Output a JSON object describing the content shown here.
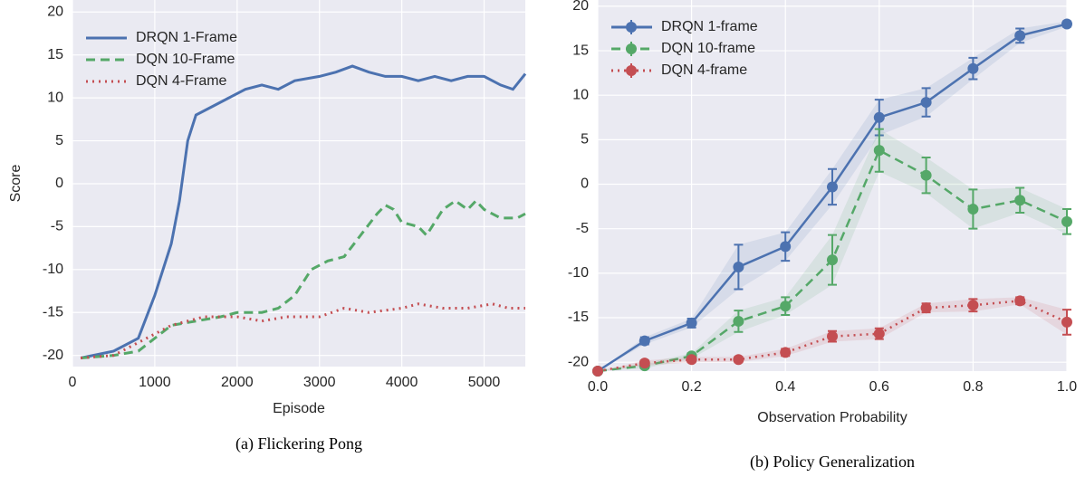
{
  "chart_data": [
    {
      "type": "line",
      "caption": "(a) Flickering Pong",
      "xlabel": "Episode",
      "ylabel": "Score",
      "xlim": [
        0,
        5500
      ],
      "ylim": [
        -21.3,
        21.4
      ],
      "xticks": [
        0,
        1000,
        2000,
        3000,
        4000,
        5000
      ],
      "yticks": [
        -20,
        -15,
        -10,
        -5,
        0,
        5,
        10,
        15,
        20
      ],
      "grid": true,
      "legend": "upper left",
      "series": [
        {
          "name": "DRQN 1-Frame",
          "color": "#4c72b0",
          "dash": "solid",
          "x": [
            100,
            500,
            800,
            1000,
            1200,
            1300,
            1400,
            1500,
            1700,
            1900,
            2100,
            2300,
            2500,
            2700,
            3000,
            3200,
            3400,
            3600,
            3800,
            4000,
            4200,
            4400,
            4600,
            4800,
            5000,
            5200,
            5350,
            5500
          ],
          "values": [
            -20.3,
            -19.5,
            -18,
            -13,
            -7,
            -2,
            5,
            8,
            9,
            10,
            11,
            11.5,
            11,
            12,
            12.5,
            13,
            13.7,
            13,
            12.5,
            12.5,
            12,
            12.5,
            12,
            12.5,
            12.5,
            11.5,
            11,
            12.8
          ]
        },
        {
          "name": "DQN 10-Frame",
          "color": "#55a868",
          "dash": "dashed",
          "x": [
            100,
            500,
            800,
            1000,
            1200,
            1500,
            1800,
            2000,
            2300,
            2500,
            2700,
            2900,
            3100,
            3300,
            3500,
            3700,
            3800,
            3900,
            4000,
            4200,
            4300,
            4500,
            4650,
            4800,
            4900,
            5000,
            5200,
            5400,
            5500
          ],
          "values": [
            -20.3,
            -20,
            -19.5,
            -18,
            -16.5,
            -16,
            -15.5,
            -15,
            -15,
            -14.5,
            -13,
            -10,
            -9,
            -8.5,
            -6,
            -3.5,
            -2.5,
            -3,
            -4.5,
            -5,
            -6,
            -3,
            -2,
            -3,
            -2,
            -3,
            -4,
            -4,
            -3.5
          ]
        },
        {
          "name": "DQN 4-Frame",
          "color": "#c44e52",
          "dash": "dotted",
          "x": [
            100,
            500,
            900,
            1200,
            1600,
            2000,
            2300,
            2600,
            3000,
            3300,
            3600,
            4000,
            4200,
            4500,
            4800,
            5100,
            5300,
            5500
          ],
          "values": [
            -20.3,
            -20,
            -18,
            -16.5,
            -15.5,
            -15.5,
            -16,
            -15.5,
            -15.5,
            -14.5,
            -15,
            -14.5,
            -14,
            -14.5,
            -14.5,
            -14,
            -14.5,
            -14.5
          ]
        }
      ]
    },
    {
      "type": "errorbar",
      "caption": "(b) Policy Generalization",
      "xlabel": "Observation Probability",
      "xlim": [
        0,
        1
      ],
      "ylim": [
        -21,
        20.7
      ],
      "xticks": [
        {
          "value": 0,
          "label": "0.0"
        },
        {
          "value": 0.2,
          "label": "0.2"
        },
        {
          "value": 0.4,
          "label": "0.4"
        },
        {
          "value": 0.6,
          "label": "0.6"
        },
        {
          "value": 0.8,
          "label": "0.8"
        },
        {
          "value": 1,
          "label": "1.0"
        }
      ],
      "yticks": [
        -20,
        -15,
        -10,
        -5,
        0,
        5,
        10,
        15,
        20
      ],
      "grid": true,
      "legend": "upper left",
      "x": [
        0,
        0.1,
        0.2,
        0.3,
        0.4,
        0.5,
        0.6,
        0.7,
        0.8,
        0.9,
        1
      ],
      "series": [
        {
          "name": "DRQN 1-frame",
          "color": "#4c72b0",
          "dash": "solid",
          "values": [
            -21,
            -17.6,
            -15.6,
            -9.3,
            -7,
            -0.3,
            7.5,
            9.2,
            13,
            16.7,
            18
          ],
          "errors": [
            0,
            0.4,
            0.5,
            2.5,
            1.6,
            2,
            2,
            1.6,
            1.2,
            0.8,
            0.3
          ]
        },
        {
          "name": "DQN 10-frame",
          "color": "#55a868",
          "dash": "dashed",
          "values": [
            -21,
            -20.4,
            -19.3,
            -15.4,
            -13.7,
            -8.5,
            3.8,
            1,
            -2.8,
            -1.8,
            -4.2
          ],
          "errors": [
            0,
            0.3,
            0.3,
            1.2,
            1,
            2.8,
            2.4,
            2,
            2.2,
            1.4,
            1.4
          ]
        },
        {
          "name": "DQN 4-frame",
          "color": "#c44e52",
          "dash": "dotted",
          "values": [
            -21,
            -20.1,
            -19.7,
            -19.7,
            -18.9,
            -17.1,
            -16.8,
            -13.9,
            -13.6,
            -13.1,
            -15.5
          ],
          "errors": [
            0,
            0.3,
            0.3,
            0.3,
            0.4,
            0.6,
            0.6,
            0.5,
            0.7,
            0.4,
            1.4
          ]
        }
      ]
    }
  ]
}
